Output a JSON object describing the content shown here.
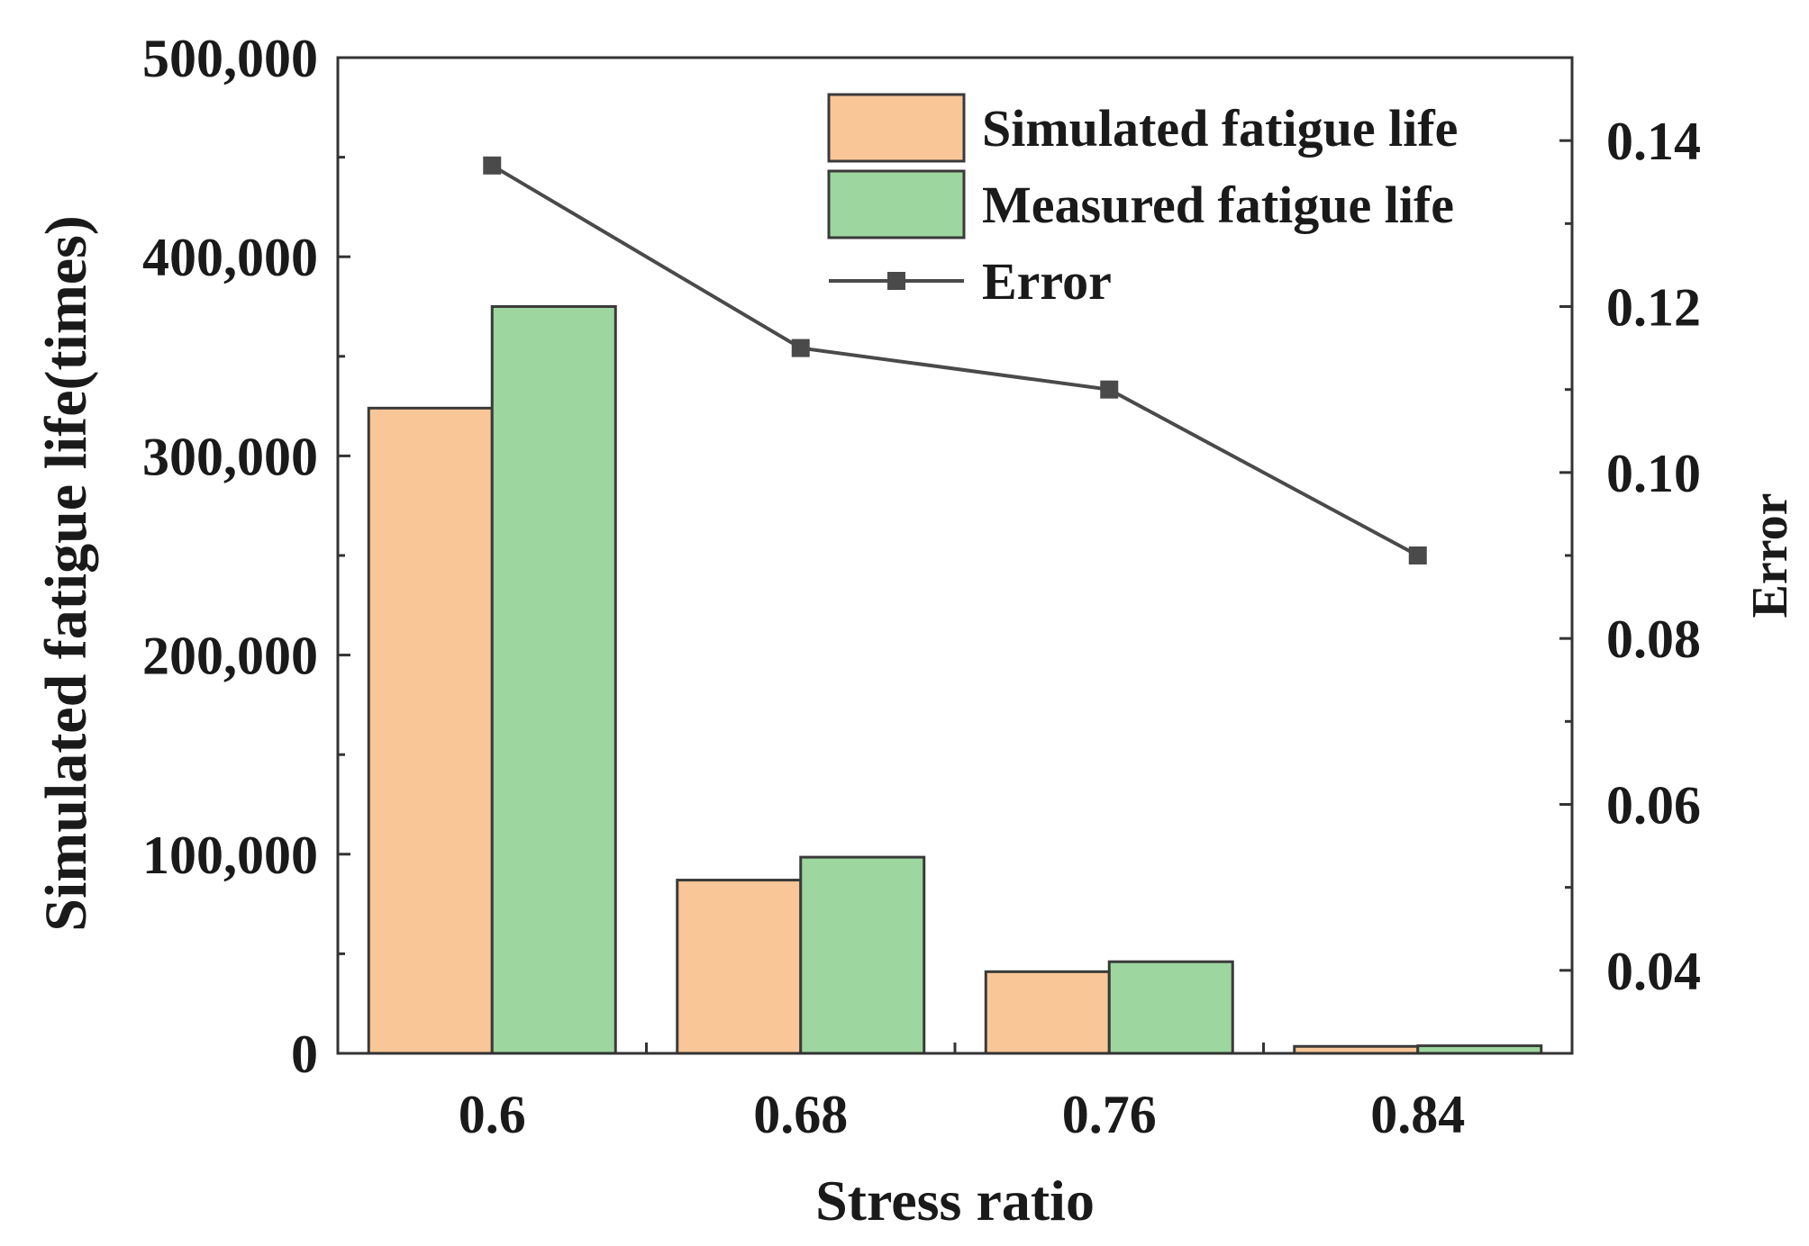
{
  "chart_data": {
    "type": "bar",
    "xlabel": "Stress ratio",
    "ylabel": "Simulated fatigue life(times)",
    "y2label": "Error",
    "categories": [
      "0.6",
      "0.68",
      "0.76",
      "0.84"
    ],
    "ylim": [
      0,
      500000
    ],
    "yticks": [
      0,
      100000,
      200000,
      300000,
      400000,
      500000
    ],
    "ytick_labels": [
      "0",
      "100,000",
      "200,000",
      "300,000",
      "400,000",
      "500,000"
    ],
    "y2lim": [
      0.03,
      0.15
    ],
    "y2ticks": [
      0.04,
      0.06,
      0.08,
      0.1,
      0.12,
      0.14
    ],
    "y2tick_labels": [
      "0.04",
      "0.06",
      "0.08",
      "0.10",
      "0.12",
      "0.14"
    ],
    "series": [
      {
        "name": "Simulated fatigue life",
        "kind": "bar",
        "axis": "left",
        "color": "#F9C697",
        "values": [
          324000,
          87000,
          41000,
          3500
        ]
      },
      {
        "name": "Measured fatigue life",
        "kind": "bar",
        "axis": "left",
        "color": "#9DD69E",
        "values": [
          375000,
          98500,
          46000,
          3800
        ]
      },
      {
        "name": "Error",
        "kind": "line",
        "axis": "right",
        "color": "#4A4A4A",
        "marker": "square",
        "values": [
          0.137,
          0.115,
          0.11,
          0.09
        ]
      }
    ],
    "legend": "top-right",
    "grid": false
  }
}
